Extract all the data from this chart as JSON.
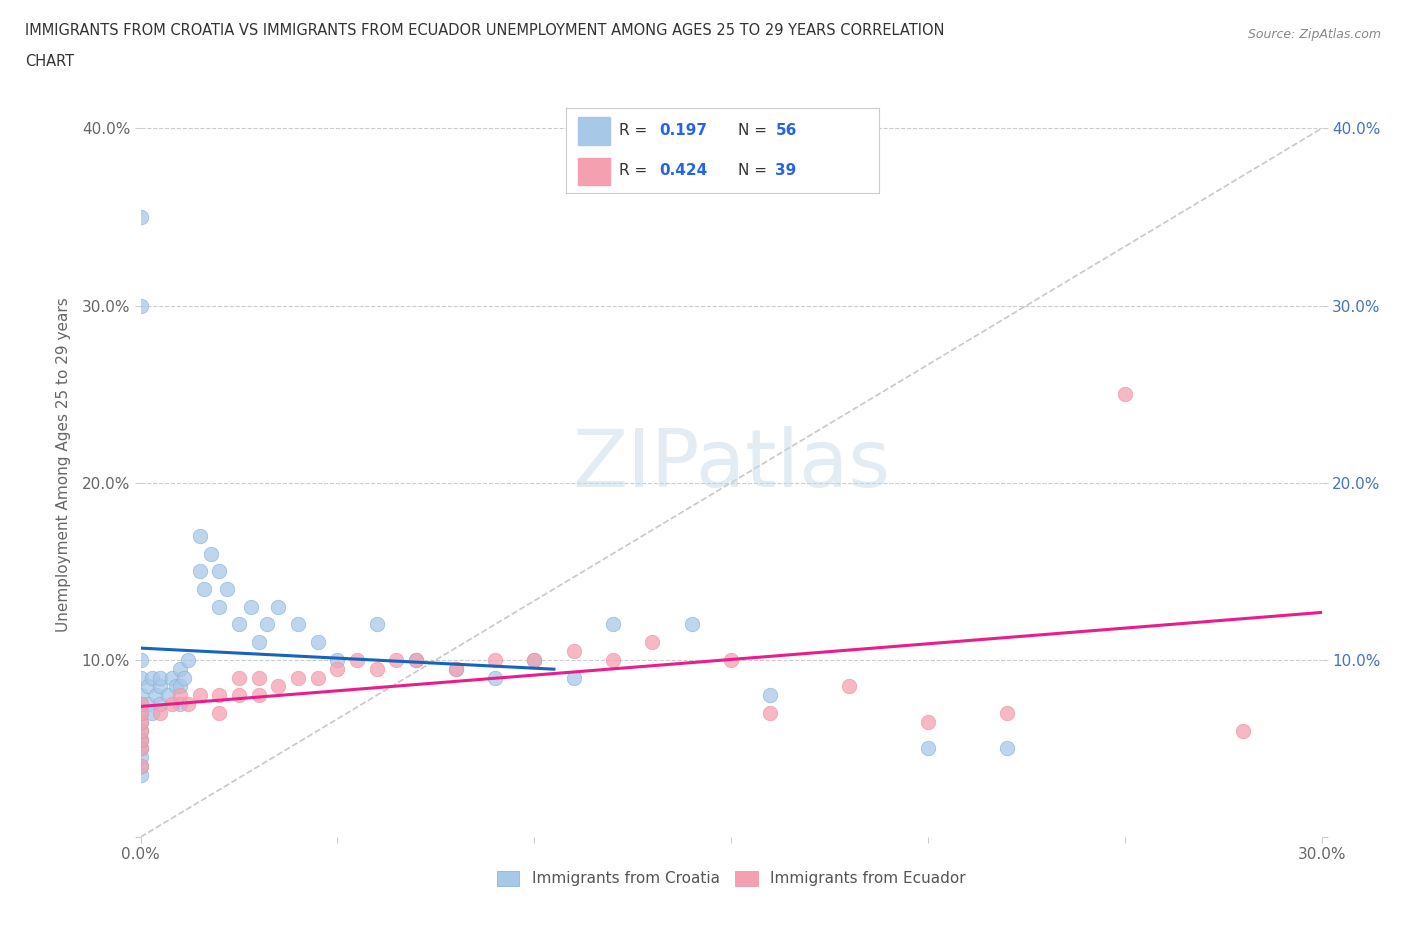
{
  "title_line1": "IMMIGRANTS FROM CROATIA VS IMMIGRANTS FROM ECUADOR UNEMPLOYMENT AMONG AGES 25 TO 29 YEARS CORRELATION",
  "title_line2": "CHART",
  "source": "Source: ZipAtlas.com",
  "ylabel": "Unemployment Among Ages 25 to 29 years",
  "xlim": [
    0.0,
    0.3
  ],
  "ylim": [
    0.0,
    0.42
  ],
  "watermark": "ZIPatlas",
  "croatia_color": "#a8c8e8",
  "ecuador_color": "#f4a0b0",
  "croatia_line_color": "#1565C0",
  "ecuador_line_color": "#E91E8C",
  "diagonal_color": "#bbbbbb",
  "croatia_R": 0.197,
  "croatia_N": 56,
  "ecuador_R": 0.424,
  "ecuador_N": 39,
  "croatia_x": [
    0.0,
    0.0,
    0.0,
    0.0,
    0.0,
    0.0,
    0.0,
    0.0,
    0.0,
    0.0,
    0.0,
    0.0,
    0.0,
    0.0,
    0.002,
    0.002,
    0.003,
    0.003,
    0.004,
    0.005,
    0.005,
    0.005,
    0.007,
    0.008,
    0.009,
    0.01,
    0.01,
    0.01,
    0.011,
    0.012,
    0.015,
    0.015,
    0.016,
    0.018,
    0.02,
    0.02,
    0.022,
    0.025,
    0.028,
    0.03,
    0.032,
    0.035,
    0.04,
    0.045,
    0.05,
    0.06,
    0.07,
    0.08,
    0.09,
    0.1,
    0.11,
    0.12,
    0.14,
    0.16,
    0.2,
    0.22
  ],
  "croatia_y": [
    0.035,
    0.04,
    0.045,
    0.05,
    0.055,
    0.06,
    0.065,
    0.07,
    0.075,
    0.08,
    0.09,
    0.1,
    0.35,
    0.3,
    0.075,
    0.085,
    0.07,
    0.09,
    0.08,
    0.075,
    0.085,
    0.09,
    0.08,
    0.09,
    0.085,
    0.075,
    0.085,
    0.095,
    0.09,
    0.1,
    0.15,
    0.17,
    0.14,
    0.16,
    0.13,
    0.15,
    0.14,
    0.12,
    0.13,
    0.11,
    0.12,
    0.13,
    0.12,
    0.11,
    0.1,
    0.12,
    0.1,
    0.095,
    0.09,
    0.1,
    0.09,
    0.12,
    0.12,
    0.08,
    0.05,
    0.05
  ],
  "ecuador_x": [
    0.0,
    0.0,
    0.0,
    0.0,
    0.0,
    0.0,
    0.0,
    0.005,
    0.008,
    0.01,
    0.012,
    0.015,
    0.02,
    0.02,
    0.025,
    0.025,
    0.03,
    0.03,
    0.035,
    0.04,
    0.045,
    0.05,
    0.055,
    0.06,
    0.065,
    0.07,
    0.08,
    0.09,
    0.1,
    0.11,
    0.12,
    0.13,
    0.15,
    0.16,
    0.18,
    0.2,
    0.22,
    0.25,
    0.28
  ],
  "ecuador_y": [
    0.04,
    0.05,
    0.055,
    0.06,
    0.065,
    0.07,
    0.075,
    0.07,
    0.075,
    0.08,
    0.075,
    0.08,
    0.07,
    0.08,
    0.08,
    0.09,
    0.08,
    0.09,
    0.085,
    0.09,
    0.09,
    0.095,
    0.1,
    0.095,
    0.1,
    0.1,
    0.095,
    0.1,
    0.1,
    0.105,
    0.1,
    0.11,
    0.1,
    0.07,
    0.085,
    0.065,
    0.07,
    0.25,
    0.06
  ],
  "background_color": "#ffffff",
  "grid_color": "#cccccc"
}
